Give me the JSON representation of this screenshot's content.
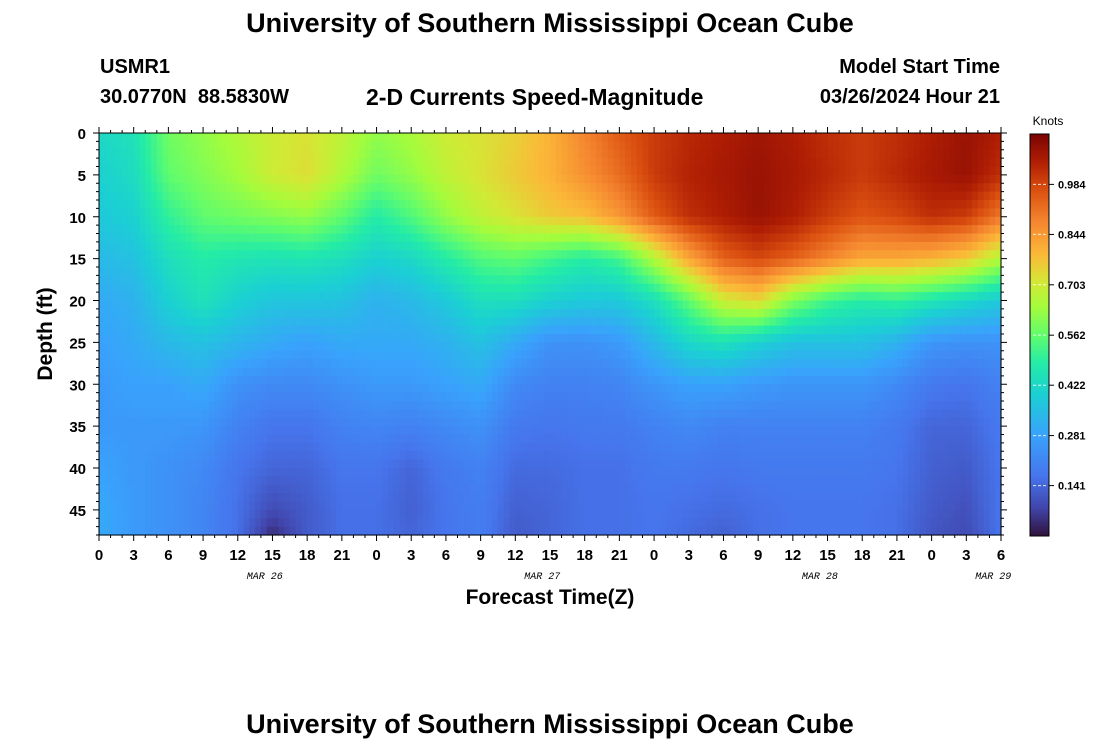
{
  "header": {
    "title": "University of Southern Mississippi Ocean Cube",
    "station_id": "USMR1",
    "coords": "30.0770N  88.5830W",
    "plot_title": "2-D Currents Speed-Magnitude",
    "start_label": "Model Start Time",
    "start_value": "03/26/2024 Hour 21"
  },
  "footer": {
    "title": "University of Southern Mississippi Ocean Cube"
  },
  "chart_data": {
    "type": "heatmap",
    "title": "2-D Currents Speed-Magnitude",
    "xlabel": "Forecast Time(Z)",
    "ylabel": "Depth (ft)",
    "x_range_hours": [
      0,
      78
    ],
    "y_range_ft": [
      0,
      48
    ],
    "x_ticks": [
      {
        "h": 0,
        "label": "0"
      },
      {
        "h": 3,
        "label": "3"
      },
      {
        "h": 6,
        "label": "6"
      },
      {
        "h": 9,
        "label": "9"
      },
      {
        "h": 12,
        "label": "12"
      },
      {
        "h": 15,
        "label": "15"
      },
      {
        "h": 18,
        "label": "18"
      },
      {
        "h": 21,
        "label": "21"
      },
      {
        "h": 24,
        "label": "0"
      },
      {
        "h": 27,
        "label": "3"
      },
      {
        "h": 30,
        "label": "6"
      },
      {
        "h": 33,
        "label": "9"
      },
      {
        "h": 36,
        "label": "12"
      },
      {
        "h": 39,
        "label": "15"
      },
      {
        "h": 42,
        "label": "18"
      },
      {
        "h": 45,
        "label": "21"
      },
      {
        "h": 48,
        "label": "0"
      },
      {
        "h": 51,
        "label": "3"
      },
      {
        "h": 54,
        "label": "6"
      },
      {
        "h": 57,
        "label": "9"
      },
      {
        "h": 60,
        "label": "12"
      },
      {
        "h": 63,
        "label": "15"
      },
      {
        "h": 66,
        "label": "18"
      },
      {
        "h": 69,
        "label": "21"
      },
      {
        "h": 72,
        "label": "0"
      },
      {
        "h": 75,
        "label": "3"
      },
      {
        "h": 78,
        "label": "6"
      }
    ],
    "date_labels": [
      {
        "h": 12,
        "label": "MAR 26"
      },
      {
        "h": 36,
        "label": "MAR 27"
      },
      {
        "h": 60,
        "label": "MAR 28"
      },
      {
        "h": 75,
        "label": "MAR 29"
      }
    ],
    "y_ticks": [
      0,
      5,
      10,
      15,
      20,
      25,
      30,
      35,
      40,
      45
    ],
    "colorbar": {
      "label": "Knots",
      "range": [
        0,
        1.125
      ],
      "ticks": [
        0.141,
        0.281,
        0.422,
        0.562,
        0.703,
        0.844,
        0.984
      ],
      "tick_labels": [
        "0.141",
        "0.281",
        "0.422",
        "0.562",
        "0.703",
        "0.844",
        "0.984"
      ]
    },
    "grid": false,
    "time_hours": [
      0,
      3,
      6,
      9,
      12,
      15,
      18,
      21,
      24,
      27,
      30,
      33,
      36,
      39,
      42,
      45,
      48,
      51,
      54,
      57,
      60,
      63,
      66,
      69,
      72,
      75,
      78
    ],
    "depth_ft": [
      0,
      5,
      10,
      15,
      20,
      25,
      30,
      35,
      40,
      45,
      48
    ],
    "speed_knots": [
      [
        0.42,
        0.45,
        0.58,
        0.62,
        0.66,
        0.7,
        0.72,
        0.68,
        0.62,
        0.65,
        0.7,
        0.72,
        0.75,
        0.8,
        0.88,
        0.95,
        1.0,
        1.03,
        1.05,
        1.07,
        1.05,
        1.02,
        1.0,
        1.02,
        1.05,
        1.08,
        1.05
      ],
      [
        0.4,
        0.43,
        0.56,
        0.6,
        0.64,
        0.7,
        0.73,
        0.66,
        0.58,
        0.62,
        0.68,
        0.72,
        0.76,
        0.8,
        0.86,
        0.92,
        1.0,
        1.04,
        1.06,
        1.08,
        1.06,
        1.03,
        1.0,
        1.03,
        1.06,
        1.08,
        1.02
      ],
      [
        0.38,
        0.4,
        0.5,
        0.56,
        0.58,
        0.6,
        0.62,
        0.56,
        0.48,
        0.54,
        0.62,
        0.68,
        0.72,
        0.76,
        0.78,
        0.85,
        0.95,
        1.02,
        1.05,
        1.08,
        1.05,
        1.0,
        0.96,
        0.98,
        1.02,
        1.0,
        0.9
      ],
      [
        0.34,
        0.36,
        0.44,
        0.48,
        0.46,
        0.45,
        0.46,
        0.44,
        0.4,
        0.42,
        0.48,
        0.54,
        0.56,
        0.52,
        0.48,
        0.52,
        0.66,
        0.82,
        0.94,
        0.98,
        0.94,
        0.88,
        0.82,
        0.82,
        0.8,
        0.76,
        0.66
      ],
      [
        0.3,
        0.32,
        0.4,
        0.45,
        0.4,
        0.37,
        0.37,
        0.36,
        0.32,
        0.34,
        0.38,
        0.44,
        0.44,
        0.4,
        0.38,
        0.38,
        0.44,
        0.56,
        0.7,
        0.74,
        0.6,
        0.52,
        0.48,
        0.5,
        0.46,
        0.42,
        0.38
      ],
      [
        0.28,
        0.3,
        0.34,
        0.36,
        0.33,
        0.3,
        0.28,
        0.3,
        0.3,
        0.3,
        0.32,
        0.36,
        0.3,
        0.24,
        0.24,
        0.26,
        0.34,
        0.42,
        0.45,
        0.4,
        0.36,
        0.36,
        0.36,
        0.32,
        0.25,
        0.24,
        0.24
      ],
      [
        0.26,
        0.28,
        0.28,
        0.3,
        0.24,
        0.22,
        0.22,
        0.24,
        0.26,
        0.26,
        0.28,
        0.3,
        0.22,
        0.2,
        0.2,
        0.21,
        0.25,
        0.28,
        0.28,
        0.26,
        0.25,
        0.25,
        0.25,
        0.22,
        0.18,
        0.17,
        0.2
      ],
      [
        0.26,
        0.26,
        0.26,
        0.25,
        0.2,
        0.17,
        0.17,
        0.2,
        0.21,
        0.2,
        0.22,
        0.24,
        0.18,
        0.17,
        0.18,
        0.18,
        0.2,
        0.22,
        0.2,
        0.2,
        0.2,
        0.2,
        0.2,
        0.18,
        0.14,
        0.14,
        0.18
      ],
      [
        0.28,
        0.26,
        0.24,
        0.22,
        0.17,
        0.14,
        0.14,
        0.17,
        0.17,
        0.14,
        0.18,
        0.2,
        0.15,
        0.15,
        0.16,
        0.16,
        0.18,
        0.18,
        0.17,
        0.18,
        0.18,
        0.18,
        0.18,
        0.17,
        0.13,
        0.12,
        0.17
      ],
      [
        0.3,
        0.26,
        0.24,
        0.21,
        0.16,
        0.09,
        0.12,
        0.16,
        0.16,
        0.13,
        0.17,
        0.19,
        0.13,
        0.14,
        0.16,
        0.16,
        0.17,
        0.16,
        0.15,
        0.16,
        0.17,
        0.17,
        0.17,
        0.16,
        0.12,
        0.1,
        0.17
      ],
      [
        0.3,
        0.26,
        0.24,
        0.21,
        0.16,
        0.04,
        0.12,
        0.16,
        0.16,
        0.14,
        0.17,
        0.19,
        0.12,
        0.14,
        0.16,
        0.16,
        0.17,
        0.15,
        0.13,
        0.16,
        0.17,
        0.17,
        0.17,
        0.16,
        0.11,
        0.09,
        0.17
      ]
    ]
  }
}
